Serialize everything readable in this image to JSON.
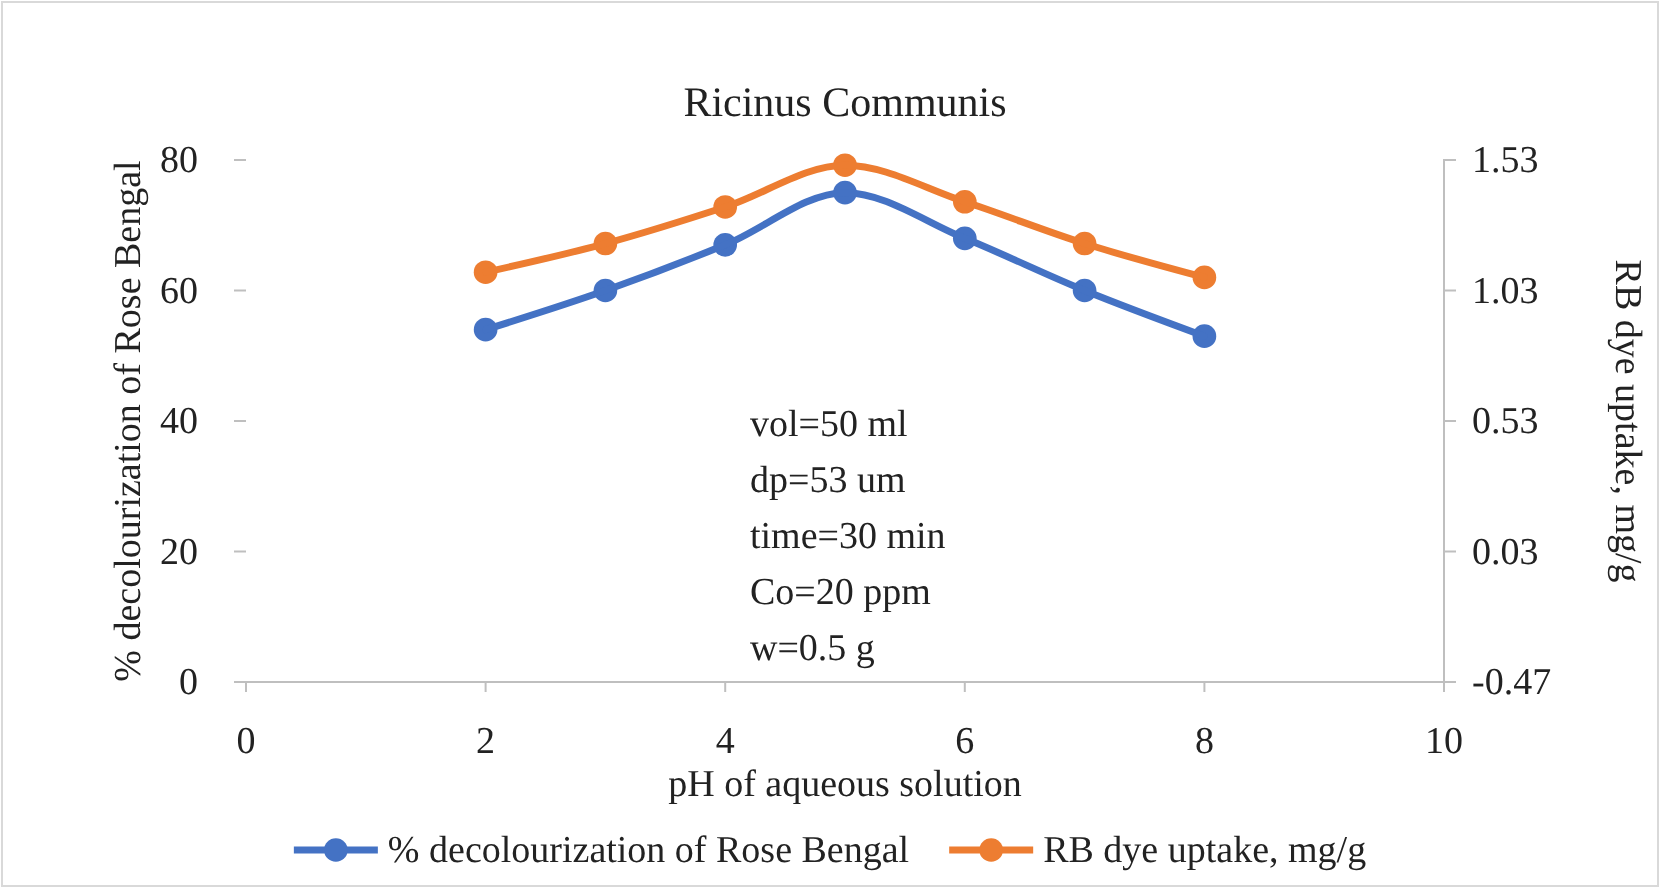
{
  "chart_data": {
    "type": "line",
    "title": "Ricinus Communis",
    "xlabel": "pH of aqueous solution",
    "ylabel": "% decolourization of Rose Bengal",
    "y2label": "RB dye uptake, mg/g",
    "x": [
      2,
      3,
      4,
      5,
      6,
      7,
      8
    ],
    "series": [
      {
        "name": "% decolourization of Rose Bengal",
        "color": "#4472c4",
        "values": [
          54,
          60,
          67,
          75,
          68,
          60,
          53
        ]
      },
      {
        "name": "RB dye uptake, mg/g",
        "color": "#ed7d31",
        "axis": "y2",
        "values": [
          1.1,
          1.21,
          1.35,
          1.51,
          1.37,
          1.21,
          1.08
        ]
      }
    ],
    "xlim": [
      0,
      10
    ],
    "xticks": [
      0,
      2,
      4,
      6,
      8,
      10
    ],
    "ylim": [
      0,
      80
    ],
    "yticks": [
      0,
      20,
      40,
      60,
      80
    ],
    "y2lim": [
      -0.47,
      1.53
    ],
    "y2ticks": [
      -0.47,
      0.03,
      0.53,
      1.03,
      1.53
    ],
    "annotations": [
      "vol=50 ml",
      "dp=53 um",
      "time=30 min",
      "Co=20 ppm",
      "w=0.5 g"
    ],
    "marker": "circle",
    "legend": "bottom",
    "grid": false
  }
}
